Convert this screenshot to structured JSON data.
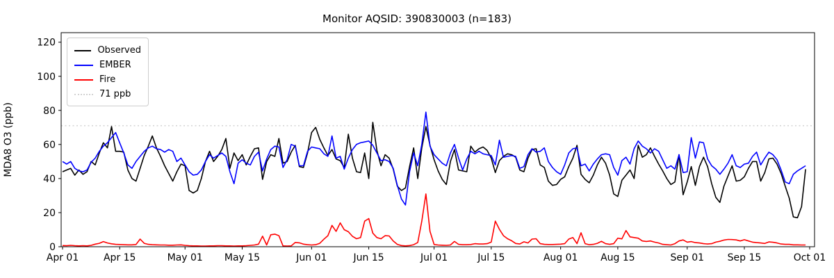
{
  "chart_data": {
    "type": "line",
    "title": "Monitor AQSID: 390830003 (n=183)",
    "xlabel": "",
    "ylabel": "MDA8 O3 (ppb)",
    "ylim": [
      0,
      125.6
    ],
    "yticks": [
      0,
      20,
      40,
      60,
      80,
      100,
      120
    ],
    "grid": false,
    "legend_position": "upper left",
    "n_points": 183,
    "x_description": "daily values, day index 0 = Apr 01, last point = Sep 30",
    "xticks": [
      {
        "day": 0,
        "label": "Apr 01"
      },
      {
        "day": 14,
        "label": "Apr 15"
      },
      {
        "day": 30,
        "label": "May 01"
      },
      {
        "day": 44,
        "label": "May 15"
      },
      {
        "day": 61,
        "label": "Jun 01"
      },
      {
        "day": 75,
        "label": "Jun 15"
      },
      {
        "day": 91,
        "label": "Jul 01"
      },
      {
        "day": 105,
        "label": "Jul 15"
      },
      {
        "day": 122,
        "label": "Aug 01"
      },
      {
        "day": 136,
        "label": "Aug 15"
      },
      {
        "day": 153,
        "label": "Sep 01"
      },
      {
        "day": 167,
        "label": "Sep 15"
      },
      {
        "day": 183,
        "label": "Oct 01"
      }
    ],
    "threshold": {
      "label": "71 ppb",
      "value": 71,
      "color": "#d3d3d3",
      "line_style": "dotted"
    },
    "series": [
      {
        "name": "Observed",
        "color": "#000000",
        "values": [
          44,
          45,
          46,
          42,
          45,
          42.5,
          44,
          50,
          48,
          55,
          61,
          58,
          70.5,
          56,
          56,
          55.5,
          45,
          40,
          38.5,
          46,
          53.5,
          59,
          65,
          58,
          53,
          47.5,
          43,
          38.5,
          44,
          48.5,
          47.5,
          33,
          31.5,
          33,
          40,
          50,
          56,
          50,
          53,
          57,
          63.5,
          46,
          55,
          50.5,
          54,
          48,
          53,
          57.5,
          58,
          39.5,
          50,
          54,
          53,
          63.5,
          49,
          50,
          55.5,
          59.5,
          47,
          46.5,
          55,
          67,
          70,
          63,
          58,
          53.5,
          57,
          51.5,
          50.5,
          46.5,
          66,
          52,
          44,
          43.5,
          55,
          40,
          73,
          56.5,
          47.5,
          54,
          52,
          45.5,
          35.5,
          33,
          34.5,
          47,
          58,
          40,
          58,
          70.5,
          59.5,
          51,
          44.5,
          39.5,
          36.5,
          50,
          57,
          45,
          44.5,
          44,
          59,
          55.5,
          57.5,
          58.5,
          56.5,
          52,
          43.5,
          50.5,
          53,
          54.5,
          54,
          52.5,
          45,
          44,
          52,
          57,
          57.5,
          48,
          46.5,
          38.5,
          36,
          36.5,
          39.5,
          41,
          47,
          52,
          59.5,
          42.5,
          39.5,
          37.5,
          42,
          48,
          52.5,
          49,
          42,
          31,
          29.5,
          39,
          42,
          45,
          40,
          59.5,
          52.5,
          54,
          58,
          53,
          48.5,
          44.5,
          40,
          36.5,
          38,
          54,
          30.5,
          38,
          47,
          36,
          47,
          52.5,
          47,
          37,
          29,
          26,
          35.5,
          41.5,
          47.5,
          38.5,
          39,
          41,
          46,
          50,
          50,
          38.5,
          43.5,
          51.5,
          52,
          48.5,
          43,
          35.5,
          28.5,
          17.5,
          17,
          23.5,
          45.5
        ]
      },
      {
        "name": "EMBER",
        "color": "#0000ff",
        "values": [
          50,
          48.5,
          50,
          46,
          44.5,
          44,
          45,
          49.5,
          52,
          56,
          59,
          61,
          64,
          67,
          61,
          55,
          48,
          46,
          50,
          53,
          56,
          58,
          59,
          57.5,
          57,
          55.5,
          57,
          56,
          50,
          52,
          48,
          44,
          42,
          42.5,
          45,
          50,
          54,
          52,
          53.5,
          55,
          53,
          44,
          37,
          49,
          51,
          49,
          48,
          53,
          55.5,
          44.5,
          51.5,
          57,
          59,
          58.5,
          46.5,
          51,
          60,
          59,
          47.5,
          47.5,
          56,
          58.5,
          58,
          57.5,
          54.5,
          53,
          65,
          52,
          53,
          45.5,
          52,
          57,
          60,
          61,
          61.5,
          62,
          59.5,
          55,
          50.5,
          51,
          50,
          46,
          36,
          28,
          24.5,
          44,
          55,
          47.5,
          60,
          79,
          59,
          54,
          51.5,
          49,
          47.5,
          55,
          60,
          52,
          45,
          51.5,
          56,
          54.5,
          56,
          54.5,
          54,
          53.5,
          48,
          62.5,
          52.5,
          53,
          53.5,
          53,
          46,
          47,
          54,
          57.5,
          55.5,
          56,
          58,
          50,
          46.5,
          44,
          42.5,
          48,
          55,
          57.5,
          58,
          47.5,
          48.5,
          44.5,
          48.5,
          51.5,
          54,
          54.5,
          54,
          46.5,
          42,
          50.5,
          52.5,
          48.5,
          57.5,
          62,
          59,
          57.5,
          55,
          57.5,
          56,
          51,
          46,
          47.5,
          45.5,
          54,
          43.5,
          44,
          64,
          52,
          61.5,
          61,
          51.5,
          47.5,
          45.5,
          42.5,
          45.5,
          49,
          54,
          47.5,
          46.5,
          48.5,
          49,
          53,
          55.5,
          48,
          52,
          55.5,
          54,
          51,
          45,
          38,
          37,
          42.5,
          44.5,
          46,
          47.5
        ]
      },
      {
        "name": "Fire",
        "color": "#ff0000",
        "values": [
          0.7,
          0.6,
          0.8,
          0.6,
          0.5,
          0.6,
          0.5,
          0.8,
          1.5,
          2,
          3,
          2.2,
          1.7,
          1.4,
          1.3,
          1.2,
          1.1,
          1.1,
          1.3,
          4.5,
          2,
          1.4,
          1.2,
          1.1,
          1,
          1,
          0.9,
          0.9,
          1,
          1.1,
          0.8,
          0.6,
          0.5,
          0.5,
          0.4,
          0.4,
          0.5,
          0.5,
          0.6,
          0.6,
          0.5,
          0.5,
          0.4,
          0.5,
          0.5,
          0.6,
          0.8,
          1,
          1.5,
          6.2,
          1,
          7,
          7.4,
          6.5,
          0.5,
          0.4,
          0.5,
          2.5,
          2.3,
          1.5,
          1.2,
          1,
          1.2,
          2,
          4.4,
          6.5,
          12.5,
          9,
          14,
          10,
          8.8,
          6.1,
          4.7,
          5.4,
          15,
          16.5,
          8,
          5.4,
          4.7,
          6.5,
          6.3,
          3.4,
          1.4,
          0.7,
          0.5,
          0.7,
          1.2,
          2.5,
          15,
          31,
          9,
          1.3,
          1,
          0.9,
          0.8,
          1,
          3.1,
          1.4,
          1.2,
          1.2,
          1.3,
          1.8,
          1.6,
          1.6,
          1.8,
          2.7,
          15,
          10.2,
          6.5,
          4.7,
          3.5,
          1.9,
          1.6,
          2.9,
          2.2,
          4.5,
          4.7,
          1.8,
          1.4,
          1.3,
          1.3,
          1.4,
          1.5,
          1.8,
          4.5,
          5.4,
          1.8,
          8.2,
          1.8,
          1.2,
          1.4,
          2,
          3.2,
          1.8,
          1.4,
          1.8,
          5,
          4.6,
          9.5,
          5.8,
          5.4,
          5,
          3.4,
          3.1,
          3.4,
          2.7,
          2.2,
          1.4,
          1.2,
          1,
          1.8,
          3.4,
          4,
          2.7,
          3,
          2.4,
          2.2,
          1.8,
          1.6,
          1.8,
          2.7,
          3.2,
          3.9,
          4.3,
          4.2,
          4,
          3.4,
          4.1,
          3.4,
          2.7,
          2.4,
          2.2,
          1.9,
          2.8,
          2.6,
          2.2,
          1.6,
          1.4,
          1.4,
          1.1,
          1.1,
          1,
          1
        ]
      }
    ]
  }
}
